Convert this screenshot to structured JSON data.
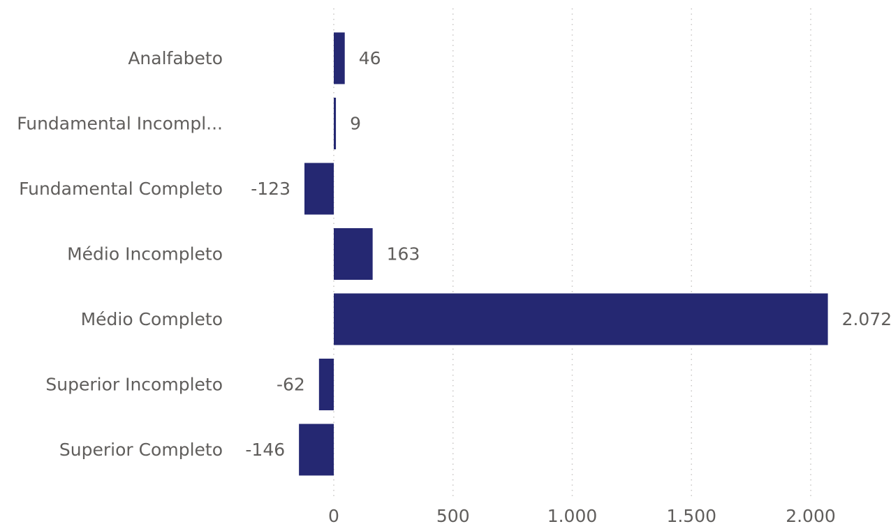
{
  "chart_data": {
    "type": "bar",
    "orientation": "horizontal",
    "title": "",
    "xlabel": "",
    "ylabel": "",
    "categories": [
      "Analfabeto",
      "Fundamental Incompl...",
      "Fundamental Completo",
      "Médio Incompleto",
      "Médio Completo",
      "Superior Incompleto",
      "Superior Completo"
    ],
    "values": [
      46,
      9,
      -123,
      163,
      2072,
      -62,
      -146
    ],
    "data_labels": [
      "46",
      "9",
      "-123",
      "163",
      "2.072",
      "-62",
      "-146"
    ],
    "xlim": [
      -146,
      2072
    ],
    "x_ticks": [
      0,
      500,
      1000,
      1500,
      2000
    ],
    "x_tick_labels": [
      "0",
      "500",
      "1.000",
      "1.500",
      "2.000"
    ],
    "grid": true,
    "legend": "none",
    "bar_color": "#252872",
    "text_color": "#605e5c",
    "grid_color": "#c8c6c4"
  }
}
